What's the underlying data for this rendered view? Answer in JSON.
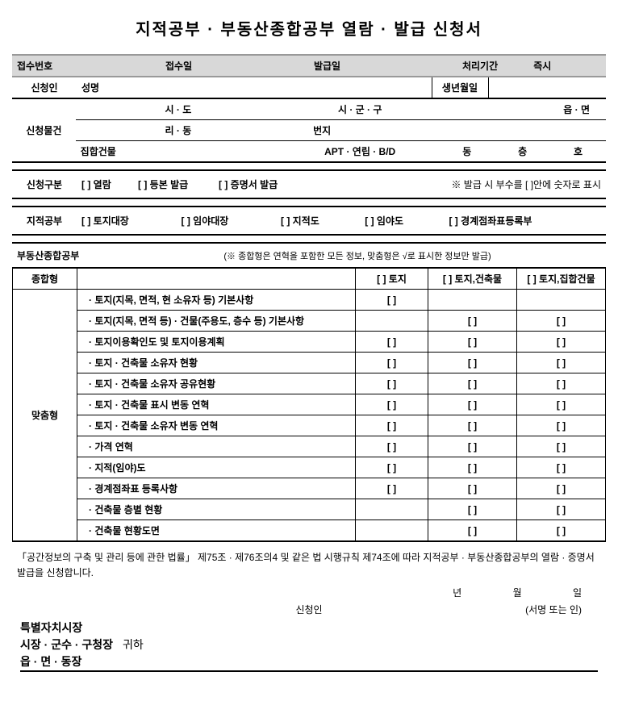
{
  "title": "지적공부 · 부동산종합공부 열람 · 발급 신청서",
  "receipt": {
    "num_label": "접수번호",
    "date_label": "접수일",
    "issue_label": "발급일",
    "period_label": "처리기간",
    "period_value": "즉시"
  },
  "applicant": {
    "head": "신청인",
    "name_label": "성명",
    "dob_label": "생년월일"
  },
  "property": {
    "head": "신청물건",
    "r1_a": "시 · 도",
    "r1_b": "시 · 군 · 구",
    "r1_c": "읍 · 면",
    "r2_a": "리 · 동",
    "r2_b": "번지",
    "r3_a": "집합건물",
    "r3_b": "APT · 연립 · B/D",
    "r3_c": "동",
    "r3_d": "층",
    "r3_e": "호"
  },
  "reqtype": {
    "head": "신청구분",
    "opt1": "[  ] 열람",
    "opt2": "[  ] 등본 발급",
    "opt3": "[  ] 증명서 발급",
    "note": "※ 발급 시 부수를 [  ]안에 숫자로 표시"
  },
  "cadastral": {
    "head": "지적공부",
    "opt1": "[  ] 토지대장",
    "opt2": "[  ] 임야대장",
    "opt3": "[  ] 지적도",
    "opt4": "[  ] 임야도",
    "opt5": "[  ] 경계점좌표등록부"
  },
  "composite": {
    "head": "부동산종합공부",
    "note": "(※ 종합형은 연혁을 포함한 모든 정보, 맞춤형은 √로 표시한 정보만 발급)",
    "full_label": "종합형",
    "col1": "[  ] 토지",
    "col2": "[  ] 토지,건축물",
    "col3": "[  ] 토지,집합건물",
    "custom_label": "맞춤형",
    "items": [
      {
        "text": "토지(지목, 면적, 현 소유자 등) 기본사항",
        "c1": "[  ]",
        "c2": "",
        "c3": ""
      },
      {
        "text": "토지(지목, 면적 등) · 건물(주용도, 층수 등) 기본사항",
        "c1": "",
        "c2": "[  ]",
        "c3": "[  ]"
      },
      {
        "text": "토지이용확인도 및 토지이용계획",
        "c1": "[  ]",
        "c2": "[  ]",
        "c3": "[  ]"
      },
      {
        "text": "토지 · 건축물 소유자 현황",
        "c1": "[  ]",
        "c2": "[  ]",
        "c3": "[  ]"
      },
      {
        "text": "토지 · 건축물 소유자 공유현황",
        "c1": "[  ]",
        "c2": "[  ]",
        "c3": "[  ]"
      },
      {
        "text": "토지 · 건축물 표시 변동 연혁",
        "c1": "[  ]",
        "c2": "[  ]",
        "c3": "[  ]"
      },
      {
        "text": "토지 · 건축물 소유자 변동 연혁",
        "c1": "[  ]",
        "c2": "[  ]",
        "c3": "[  ]"
      },
      {
        "text": "가격 연혁",
        "c1": "[  ]",
        "c2": "[  ]",
        "c3": "[  ]"
      },
      {
        "text": "지적(임야)도",
        "c1": "[  ]",
        "c2": "[  ]",
        "c3": "[  ]"
      },
      {
        "text": "경계점좌표 등록사항",
        "c1": "[  ]",
        "c2": "[  ]",
        "c3": "[  ]"
      },
      {
        "text": "건축물 층별 현황",
        "c1": "",
        "c2": "[  ]",
        "c3": "[  ]"
      },
      {
        "text": "건축물 현황도면",
        "c1": "",
        "c2": "[  ]",
        "c3": "[  ]"
      }
    ]
  },
  "declaration": "「공간정보의 구축 및 관리 등에 관한 법률」 제75조 · 제76조의4 및 같은 법 시행규칙 제74조에 따라 지적공부 · 부동산종합공부의 열람 · 증명서 발급을 신청합니다.",
  "date_labels": {
    "y": "년",
    "m": "월",
    "d": "일"
  },
  "signer_label": "신청인",
  "sign_note": "(서명 또는 인)",
  "officials": {
    "l1": "특별자치시장",
    "l2": "시장 · 군수 · 구청장",
    "suffix": "귀하",
    "l3": "읍 · 면 · 동장"
  },
  "bullet": "·"
}
